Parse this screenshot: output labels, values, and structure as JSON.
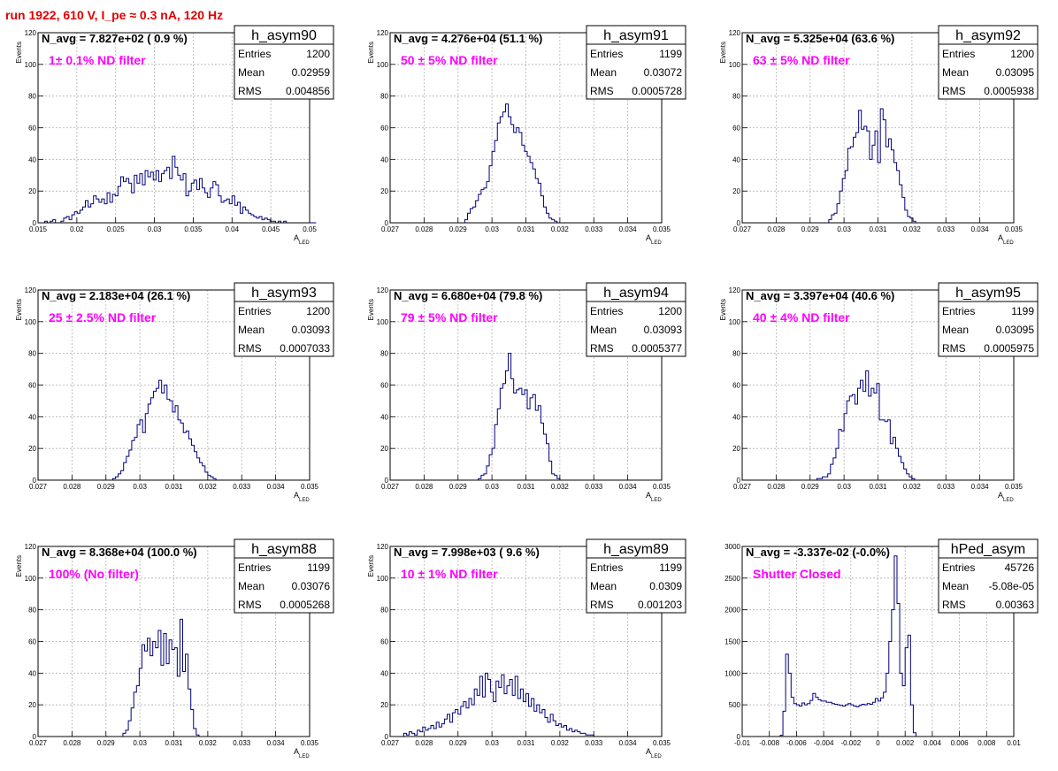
{
  "run_title": "run 1922,   610 V, I_pe ≈ 0.3 nA, 120 Hz",
  "colors": {
    "histogram": "#00007f",
    "annotation": "#ff00ff",
    "run_title": "#e00000"
  },
  "chart_data": [
    {
      "type": "bar",
      "name": "h_asym90",
      "navg": "N_avg = 7.827e+02 ( 0.9 %)",
      "note": "1± 0.1% ND filter",
      "stats": {
        "Entries": "1200",
        "Mean": "0.02959",
        "RMS": "0.004856"
      },
      "xlabel": "A",
      "xlabel_sub": "LED",
      "ylabel": "Events",
      "xlim": [
        0.015,
        0.05
      ],
      "ylim": [
        0,
        120
      ],
      "xticks": [
        0.015,
        0.02,
        0.025,
        0.03,
        0.035,
        0.04,
        0.045,
        0.05
      ],
      "xtick_labels": [
        "0.015",
        "0.02",
        "0.025",
        "0.03",
        "0.035",
        "0.04",
        "0.045",
        "0.05"
      ],
      "yticks": [
        0,
        20,
        40,
        60,
        80,
        100,
        120
      ],
      "ytick_labels": [
        "0",
        "20",
        "40",
        "60",
        "80",
        "100",
        "120"
      ],
      "bin_start": 0.0155,
      "bin_width": 0.00035,
      "values": [
        0,
        1,
        0,
        1,
        2,
        0,
        0,
        1,
        3,
        4,
        2,
        5,
        7,
        6,
        8,
        10,
        14,
        10,
        12,
        17,
        15,
        13,
        15,
        12,
        19,
        13,
        18,
        17,
        23,
        29,
        26,
        28,
        25,
        19,
        30,
        25,
        31,
        24,
        33,
        29,
        32,
        27,
        33,
        26,
        31,
        33,
        35,
        28,
        42,
        35,
        30,
        27,
        31,
        17,
        20,
        25,
        27,
        21,
        28,
        22,
        19,
        16,
        22,
        26,
        24,
        17,
        13,
        14,
        15,
        12,
        17,
        11,
        13,
        6,
        10,
        8,
        6,
        5,
        4,
        3,
        4,
        2,
        3,
        2,
        1,
        1,
        0,
        1,
        0,
        1,
        0,
        0,
        0,
        0,
        0,
        0,
        0,
        0,
        0,
        0,
        0
      ]
    },
    {
      "type": "bar",
      "name": "h_asym91",
      "navg": "N_avg = 4.276e+04 (51.1 %)",
      "note": "50 ± 5% ND filter",
      "stats": {
        "Entries": "1199",
        "Mean": "0.03072",
        "RMS": "0.0005728"
      },
      "xlabel": "A",
      "xlabel_sub": "LED",
      "ylabel": "Events",
      "xlim": [
        0.027,
        0.035
      ],
      "ylim": [
        0,
        120
      ],
      "xticks": [
        0.027,
        0.028,
        0.029,
        0.03,
        0.031,
        0.032,
        0.033,
        0.034,
        0.035
      ],
      "xtick_labels": [
        "0.027",
        "0.028",
        "0.029",
        "0.03",
        "0.031",
        "0.032",
        "0.033",
        "0.034",
        "0.035"
      ],
      "yticks": [
        0,
        20,
        40,
        60,
        80,
        100,
        120
      ],
      "ytick_labels": [
        "0",
        "20",
        "40",
        "60",
        "80",
        "100",
        "120"
      ],
      "bin_start": 0.0292,
      "bin_width": 8e-05,
      "values": [
        2,
        6,
        9,
        10,
        14,
        18,
        21,
        22,
        26,
        36,
        45,
        52,
        63,
        67,
        70,
        75,
        67,
        62,
        57,
        60,
        57,
        49,
        45,
        42,
        38,
        34,
        28,
        25,
        17,
        10,
        6,
        3,
        2,
        1
      ]
    },
    {
      "type": "bar",
      "name": "h_asym92",
      "navg": "N_avg = 5.325e+04 (63.6 %)",
      "note": "63 ± 5% ND filter",
      "stats": {
        "Entries": "1200",
        "Mean": "0.03095",
        "RMS": "0.0005938"
      },
      "xlabel": "A",
      "xlabel_sub": "LED",
      "ylabel": "Events",
      "xlim": [
        0.027,
        0.035
      ],
      "ylim": [
        0,
        120
      ],
      "xticks": [
        0.027,
        0.028,
        0.029,
        0.03,
        0.031,
        0.032,
        0.033,
        0.034,
        0.035
      ],
      "xtick_labels": [
        "0.027",
        "0.028",
        "0.029",
        "0.03",
        "0.031",
        "0.032",
        "0.033",
        "0.034",
        "0.035"
      ],
      "yticks": [
        0,
        20,
        40,
        60,
        80,
        100,
        120
      ],
      "ytick_labels": [
        "0",
        "20",
        "40",
        "60",
        "80",
        "100",
        "120"
      ],
      "bin_start": 0.02955,
      "bin_width": 8e-05,
      "values": [
        2,
        5,
        6,
        12,
        20,
        28,
        33,
        47,
        48,
        54,
        57,
        71,
        59,
        61,
        58,
        40,
        49,
        58,
        38,
        72,
        65,
        48,
        53,
        46,
        38,
        33,
        24,
        16,
        8,
        4,
        3,
        1
      ]
    },
    {
      "type": "bar",
      "name": "h_asym93",
      "navg": "N_avg = 2.183e+04 (26.1 %)",
      "note": "25 ± 2.5% ND filter",
      "stats": {
        "Entries": "1200",
        "Mean": "0.03093",
        "RMS": "0.0007033"
      },
      "xlabel": "A",
      "xlabel_sub": "LED",
      "ylabel": "Events",
      "xlim": [
        0.027,
        0.035
      ],
      "ylim": [
        0,
        120
      ],
      "xticks": [
        0.027,
        0.028,
        0.029,
        0.03,
        0.031,
        0.032,
        0.033,
        0.034,
        0.035
      ],
      "xtick_labels": [
        "0.027",
        "0.028",
        "0.029",
        "0.03",
        "0.031",
        "0.032",
        "0.033",
        "0.034",
        "0.035"
      ],
      "yticks": [
        0,
        20,
        40,
        60,
        80,
        100,
        120
      ],
      "ytick_labels": [
        "0",
        "20",
        "40",
        "60",
        "80",
        "100",
        "120"
      ],
      "bin_start": 0.0292,
      "bin_width": 8e-05,
      "values": [
        1,
        2,
        4,
        6,
        11,
        15,
        19,
        25,
        27,
        35,
        38,
        30,
        42,
        48,
        52,
        56,
        58,
        63,
        55,
        60,
        51,
        50,
        43,
        47,
        38,
        36,
        30,
        31,
        26,
        22,
        18,
        14,
        11,
        9,
        5,
        3,
        2,
        1
      ]
    },
    {
      "type": "bar",
      "name": "h_asym94",
      "navg": "N_avg = 6.680e+04 (79.8 %)",
      "note": "79 ± 5% ND filter",
      "stats": {
        "Entries": "1200",
        "Mean": "0.03093",
        "RMS": "0.0005377"
      },
      "xlabel": "A",
      "xlabel_sub": "LED",
      "ylabel": "Events",
      "xlim": [
        0.027,
        0.035
      ],
      "ylim": [
        0,
        120
      ],
      "xticks": [
        0.027,
        0.028,
        0.029,
        0.03,
        0.031,
        0.032,
        0.033,
        0.034,
        0.035
      ],
      "xtick_labels": [
        "0.027",
        "0.028",
        "0.029",
        "0.03",
        "0.031",
        "0.032",
        "0.033",
        "0.034",
        "0.035"
      ],
      "yticks": [
        0,
        20,
        40,
        60,
        80,
        100,
        120
      ],
      "ytick_labels": [
        "0",
        "20",
        "40",
        "60",
        "80",
        "100",
        "120"
      ],
      "bin_start": 0.0296,
      "bin_width": 8e-05,
      "values": [
        1,
        3,
        4,
        9,
        16,
        20,
        35,
        45,
        58,
        61,
        69,
        80,
        64,
        55,
        57,
        58,
        54,
        57,
        45,
        52,
        54,
        44,
        47,
        36,
        29,
        23,
        12,
        4,
        3,
        1
      ]
    },
    {
      "type": "bar",
      "name": "h_asym95",
      "navg": "N_avg = 3.397e+04 (40.6 %)",
      "note": "40 ± 4% ND filter",
      "stats": {
        "Entries": "1199",
        "Mean": "0.03095",
        "RMS": "0.0005975"
      },
      "xlabel": "A",
      "xlabel_sub": "LED",
      "ylabel": "Events",
      "xlim": [
        0.027,
        0.035
      ],
      "ylim": [
        0,
        120
      ],
      "xticks": [
        0.027,
        0.028,
        0.029,
        0.03,
        0.031,
        0.032,
        0.033,
        0.034,
        0.035
      ],
      "xtick_labels": [
        "0.027",
        "0.028",
        "0.029",
        "0.03",
        "0.031",
        "0.032",
        "0.033",
        "0.034",
        "0.035"
      ],
      "yticks": [
        0,
        20,
        40,
        60,
        80,
        100,
        120
      ],
      "ytick_labels": [
        "0",
        "20",
        "40",
        "60",
        "80",
        "100",
        "120"
      ],
      "bin_start": 0.0292,
      "bin_width": 8e-05,
      "values": [
        1,
        1,
        2,
        2,
        4,
        10,
        14,
        20,
        32,
        31,
        42,
        50,
        53,
        54,
        48,
        58,
        63,
        56,
        69,
        53,
        58,
        55,
        61,
        38,
        38,
        37,
        38,
        23,
        27,
        20,
        15,
        11,
        7,
        4,
        2,
        1
      ]
    },
    {
      "type": "bar",
      "name": "h_asym88",
      "navg": "N_avg = 8.368e+04 (100.0 %)",
      "note": "100% (No filter)",
      "stats": {
        "Entries": "1199",
        "Mean": "0.03076",
        "RMS": "0.0005268"
      },
      "xlabel": "A",
      "xlabel_sub": "LED",
      "ylabel": "Events",
      "xlim": [
        0.027,
        0.035
      ],
      "ylim": [
        0,
        120
      ],
      "xticks": [
        0.027,
        0.028,
        0.029,
        0.03,
        0.031,
        0.032,
        0.033,
        0.034,
        0.035
      ],
      "xtick_labels": [
        "0.027",
        "0.028",
        "0.029",
        "0.03",
        "0.031",
        "0.032",
        "0.033",
        "0.034",
        "0.035"
      ],
      "yticks": [
        0,
        20,
        40,
        60,
        80,
        100,
        120
      ],
      "ytick_labels": [
        "0",
        "20",
        "40",
        "60",
        "80",
        "100",
        "120"
      ],
      "bin_start": 0.0295,
      "bin_width": 8e-05,
      "values": [
        2,
        4,
        10,
        18,
        28,
        32,
        43,
        58,
        54,
        62,
        51,
        60,
        56,
        67,
        45,
        65,
        46,
        61,
        55,
        56,
        38,
        74,
        41,
        52,
        30,
        17,
        5,
        1
      ]
    },
    {
      "type": "bar",
      "name": "h_asym89",
      "navg": "N_avg = 7.998e+03 ( 9.6 %)",
      "note": "10 ± 1% ND filter",
      "stats": {
        "Entries": "1199",
        "Mean": "0.0309",
        "RMS": "0.001203"
      },
      "xlabel": "A",
      "xlabel_sub": "LED",
      "ylabel": "Events",
      "xlim": [
        0.027,
        0.035
      ],
      "ylim": [
        0,
        120
      ],
      "xticks": [
        0.027,
        0.028,
        0.029,
        0.03,
        0.031,
        0.032,
        0.033,
        0.034,
        0.035
      ],
      "xtick_labels": [
        "0.027",
        "0.028",
        "0.029",
        "0.03",
        "0.031",
        "0.032",
        "0.033",
        "0.034",
        "0.035"
      ],
      "yticks": [
        0,
        20,
        40,
        60,
        80,
        100,
        120
      ],
      "ytick_labels": [
        "0",
        "20",
        "40",
        "60",
        "80",
        "100",
        "120"
      ],
      "bin_start": 0.0274,
      "bin_width": 8e-05,
      "values": [
        2,
        1,
        3,
        2,
        1,
        4,
        3,
        6,
        4,
        5,
        7,
        5,
        9,
        6,
        8,
        11,
        14,
        9,
        15,
        17,
        14,
        19,
        22,
        18,
        24,
        20,
        30,
        26,
        38,
        25,
        40,
        36,
        28,
        22,
        35,
        31,
        39,
        27,
        32,
        36,
        26,
        38,
        24,
        30,
        22,
        27,
        19,
        24,
        16,
        20,
        15,
        17,
        12,
        9,
        14,
        10,
        7,
        8,
        6,
        7,
        4,
        5,
        3,
        4,
        3,
        2,
        2,
        1,
        1,
        1
      ]
    },
    {
      "type": "bar",
      "name": "hPed_asym",
      "navg": "N_avg = -3.337e-02 (-0.0%)",
      "note": "Shutter Closed",
      "stats": {
        "Entries": "45726",
        "Mean": "-5.08e-05",
        "RMS": "0.00363"
      },
      "xlabel": "",
      "xlabel_sub": "",
      "ylabel": "",
      "xlim": [
        -0.01,
        0.01
      ],
      "ylim": [
        0,
        3000
      ],
      "xticks": [
        -0.01,
        -0.008,
        -0.006,
        -0.004,
        -0.002,
        0,
        0.002,
        0.004,
        0.006,
        0.008,
        0.01
      ],
      "xtick_labels": [
        "-0.01",
        "-0.008",
        "-0.006",
        "-0.004",
        "-0.002",
        "0",
        "0.002",
        "0.004",
        "0.006",
        "0.008",
        "0.01"
      ],
      "yticks": [
        0,
        500,
        1000,
        1500,
        2000,
        2500,
        3000
      ],
      "ytick_labels": [
        "0",
        "500",
        "1000",
        "1500",
        "2000",
        "2500",
        "3000"
      ],
      "bin_start": -0.0072,
      "bin_width": 0.0002,
      "values": [
        20,
        400,
        1300,
        1000,
        620,
        520,
        500,
        480,
        530,
        500,
        520,
        570,
        680,
        620,
        580,
        560,
        560,
        540,
        540,
        520,
        510,
        500,
        490,
        480,
        500,
        520,
        500,
        480,
        470,
        490,
        510,
        500,
        520,
        510,
        540,
        600,
        560,
        610,
        700,
        1000,
        1500,
        2000,
        2850,
        2100,
        1000,
        800,
        1400,
        1600,
        500,
        60
      ]
    }
  ]
}
